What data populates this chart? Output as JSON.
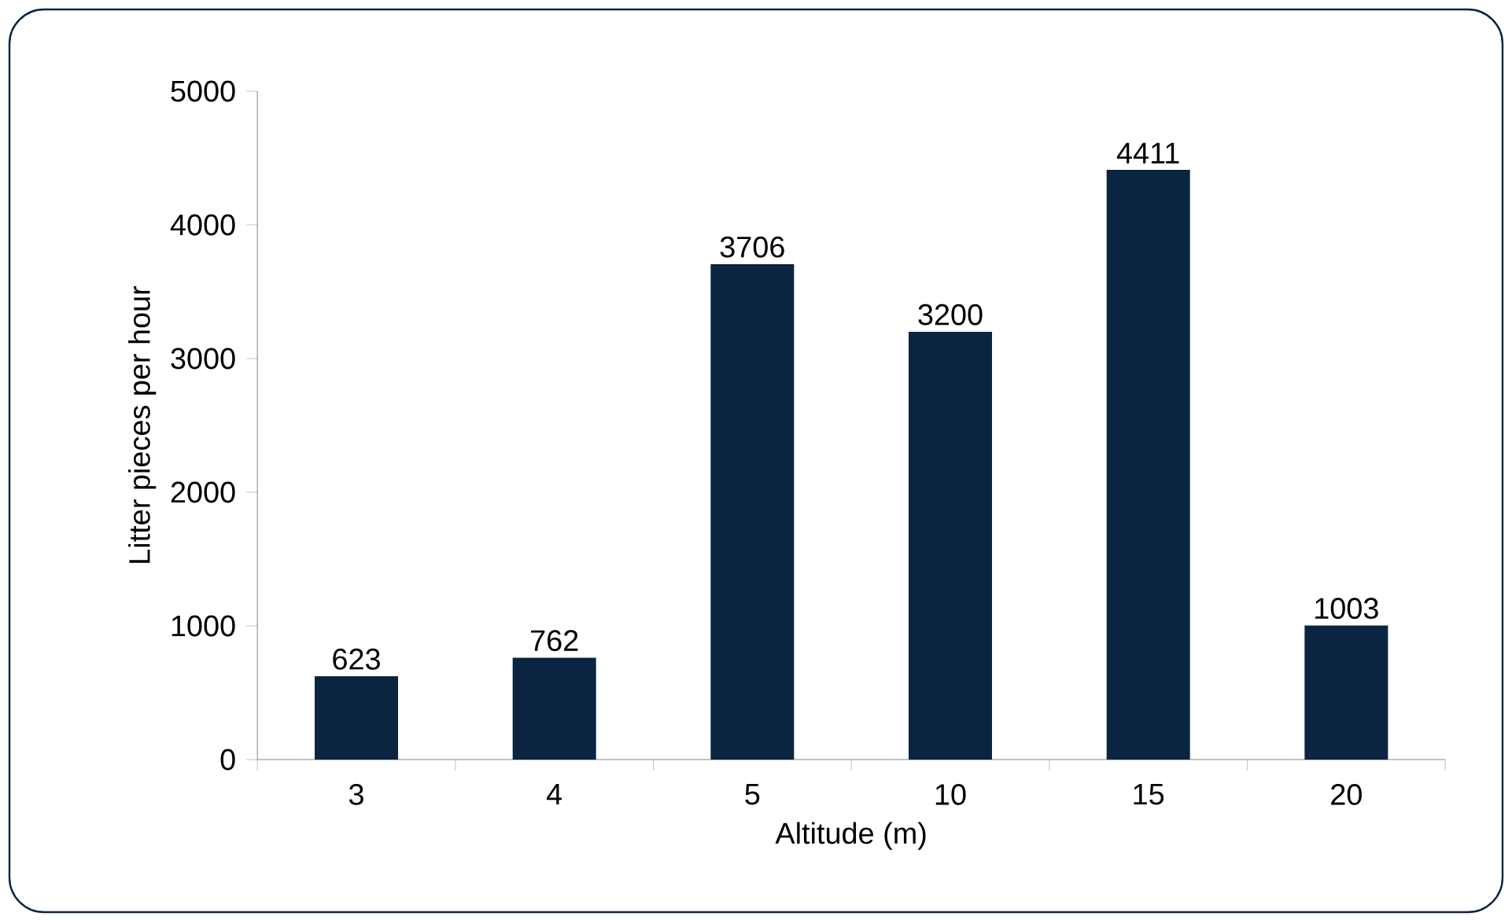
{
  "chart_data": {
    "type": "bar",
    "xlabel": "Altitude (m)",
    "ylabel": "Litter pieces per hour",
    "categories": [
      "3",
      "4",
      "5",
      "10",
      "15",
      "20"
    ],
    "values": [
      623,
      762,
      3706,
      3200,
      4411,
      1003
    ],
    "color": "#0b2441",
    "ylim": [
      0,
      5000
    ],
    "yticks": [
      0,
      1000,
      2000,
      3000,
      4000,
      5000
    ],
    "data_labels": true,
    "grid": false
  }
}
